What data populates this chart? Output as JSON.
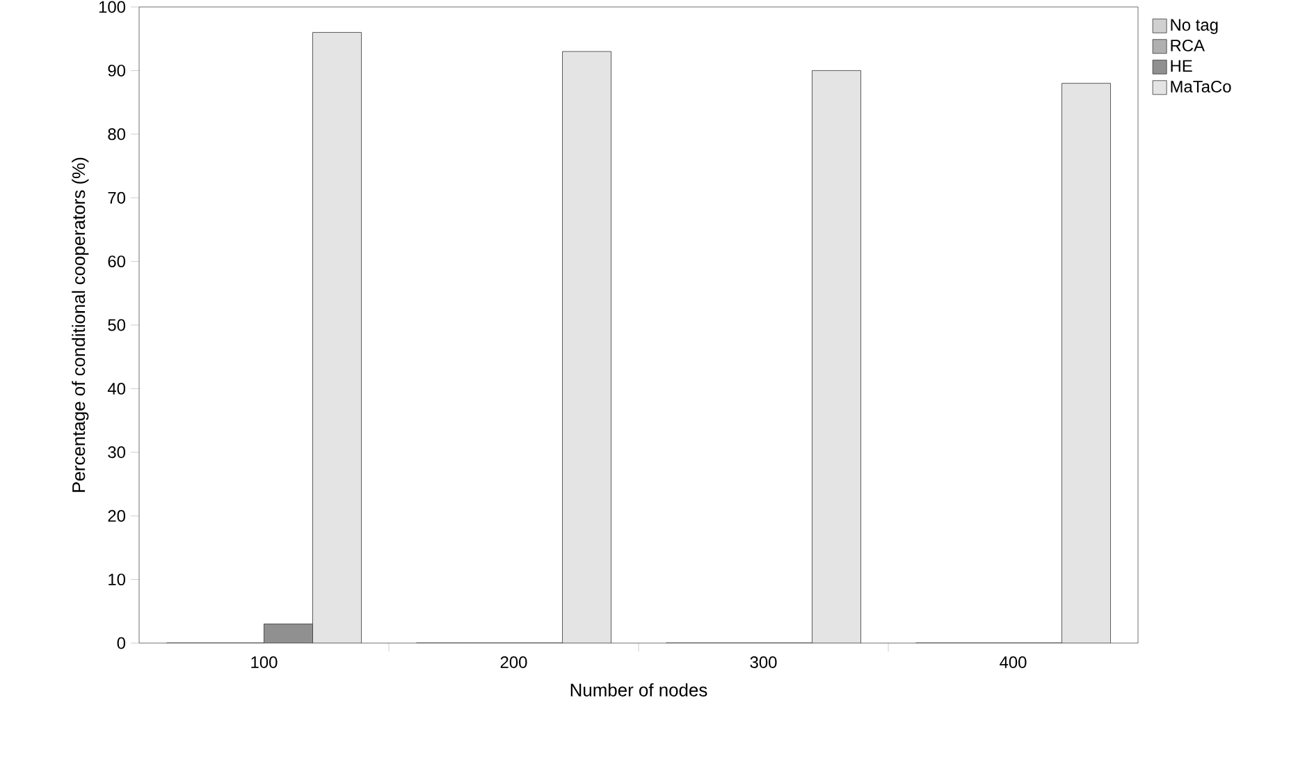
{
  "chart_data": {
    "type": "bar",
    "xlabel": "Number of nodes",
    "ylabel": "Percentage of conditional cooperators (%)",
    "categories": [
      "100",
      "200",
      "300",
      "400"
    ],
    "series": [
      {
        "name": "No tag",
        "color": "#d0d0d0",
        "values": [
          0,
          0,
          0,
          0
        ]
      },
      {
        "name": "RCA",
        "color": "#b0b0b0",
        "values": [
          0,
          0,
          0,
          0
        ]
      },
      {
        "name": "HE",
        "color": "#909090",
        "values": [
          3,
          0,
          0,
          0
        ]
      },
      {
        "name": "MaTaCo",
        "color": "#e4e4e4",
        "values": [
          96,
          93,
          90,
          88
        ]
      }
    ],
    "ylim": [
      0,
      100
    ],
    "yticks": [
      0,
      10,
      20,
      30,
      40,
      50,
      60,
      70,
      80,
      90,
      100
    ],
    "legend": "top right",
    "grid": false
  }
}
